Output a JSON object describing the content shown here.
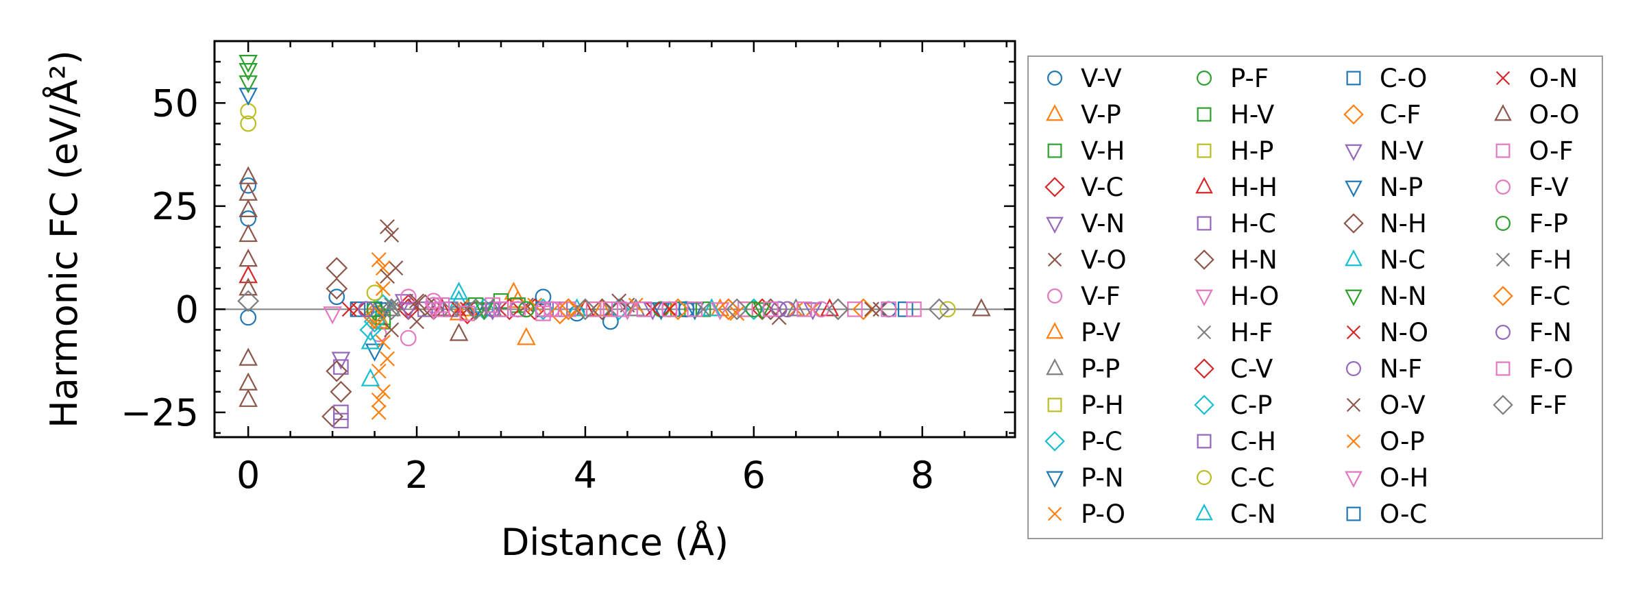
{
  "chart_data": {
    "type": "scatter",
    "title": "",
    "xlabel": "Distance (Å)",
    "ylabel": "Harmonic FC (eV/Å²)",
    "xlim": [
      -0.4,
      9.1
    ],
    "ylim": [
      -31,
      65
    ],
    "xticks": [
      0,
      2,
      4,
      6,
      8
    ],
    "yticks": [
      -25,
      0,
      25,
      50
    ],
    "xtick_labels": [
      "0",
      "2",
      "4",
      "6",
      "8"
    ],
    "ytick_labels": [
      "−25",
      "0",
      "25",
      "50"
    ],
    "reference_line_y": 0,
    "legend_position": "outside-right",
    "legend_columns": 4,
    "series": [
      {
        "name": "V-V",
        "marker": "circle",
        "color": "#1f77b4",
        "points": [
          [
            0,
            30
          ],
          [
            0,
            22
          ],
          [
            0,
            -2
          ],
          [
            1.05,
            3
          ],
          [
            3.5,
            3
          ],
          [
            3.9,
            -1
          ],
          [
            4.3,
            -3
          ],
          [
            5.2,
            0
          ],
          [
            6.3,
            0
          ],
          [
            7.6,
            0
          ]
        ]
      },
      {
        "name": "V-P",
        "marker": "triangle-up",
        "color": "#ff7f0e",
        "points": [
          [
            1.55,
            -2
          ],
          [
            2.5,
            -1
          ],
          [
            3.15,
            4
          ],
          [
            3.3,
            -7
          ],
          [
            4.2,
            0
          ],
          [
            5.5,
            0
          ]
        ]
      },
      {
        "name": "V-H",
        "marker": "square",
        "color": "#2ca02c",
        "points": [
          [
            1.6,
            -3
          ],
          [
            2.7,
            1
          ],
          [
            3.0,
            2
          ],
          [
            5.1,
            0
          ]
        ]
      },
      {
        "name": "V-C",
        "marker": "diamond",
        "color": "#d62728",
        "points": [
          [
            1.9,
            1
          ],
          [
            2.6,
            -1
          ],
          [
            3.4,
            0
          ],
          [
            6.1,
            0
          ]
        ]
      },
      {
        "name": "V-N",
        "marker": "triangle-down",
        "color": "#9467bd",
        "points": [
          [
            1.1,
            -12
          ],
          [
            1.85,
            2
          ],
          [
            2.9,
            0
          ],
          [
            4.8,
            0
          ]
        ]
      },
      {
        "name": "V-O",
        "marker": "x",
        "color": "#8c564b",
        "points": [
          [
            1.65,
            20
          ],
          [
            1.7,
            18
          ],
          [
            1.75,
            10
          ],
          [
            2.0,
            -3
          ],
          [
            3.3,
            1
          ],
          [
            4.5,
            1
          ],
          [
            6.3,
            -2
          ],
          [
            7.5,
            0
          ]
        ]
      },
      {
        "name": "V-F",
        "marker": "circle",
        "color": "#e377c2",
        "points": [
          [
            1.55,
            -6
          ],
          [
            1.9,
            3
          ],
          [
            2.2,
            1
          ],
          [
            3.6,
            0
          ],
          [
            5.0,
            0
          ]
        ]
      },
      {
        "name": "P-V",
        "marker": "triangle-up",
        "color": "#ff7f0e",
        "points": [
          [
            1.55,
            -3
          ],
          [
            2.6,
            0
          ],
          [
            3.2,
            2
          ],
          [
            5.6,
            0
          ]
        ]
      },
      {
        "name": "P-P",
        "marker": "triangle-up",
        "color": "#7f7f7f",
        "points": [
          [
            1.7,
            0
          ],
          [
            2.9,
            0
          ],
          [
            4.6,
            0
          ],
          [
            6.5,
            0
          ]
        ]
      },
      {
        "name": "P-H",
        "marker": "square",
        "color": "#bcbd22",
        "points": [
          [
            1.5,
            0
          ],
          [
            2.4,
            0
          ],
          [
            4.1,
            0
          ]
        ]
      },
      {
        "name": "P-C",
        "marker": "diamond",
        "color": "#17becf",
        "points": [
          [
            1.45,
            -5
          ],
          [
            1.6,
            1
          ],
          [
            2.8,
            0
          ],
          [
            4.4,
            0
          ]
        ]
      },
      {
        "name": "P-N",
        "marker": "triangle-down",
        "color": "#1f77b4",
        "points": [
          [
            1.5,
            -10
          ],
          [
            2.7,
            0
          ],
          [
            5.3,
            0
          ]
        ]
      },
      {
        "name": "P-O",
        "marker": "x",
        "color": "#ff7f0e",
        "points": [
          [
            1.55,
            12
          ],
          [
            1.6,
            10
          ],
          [
            1.6,
            -8
          ],
          [
            1.55,
            -15
          ],
          [
            1.6,
            -20
          ],
          [
            1.55,
            -25
          ],
          [
            1.65,
            -12
          ],
          [
            3.4,
            1
          ],
          [
            4.6,
            1
          ],
          [
            5.8,
            -1
          ],
          [
            6.7,
            0
          ]
        ]
      },
      {
        "name": "P-F",
        "marker": "circle",
        "color": "#2ca02c",
        "points": [
          [
            1.55,
            -1
          ],
          [
            2.7,
            0
          ],
          [
            4.9,
            0
          ]
        ]
      },
      {
        "name": "H-V",
        "marker": "square",
        "color": "#2ca02c",
        "points": [
          [
            1.6,
            -2
          ],
          [
            3.2,
            1
          ],
          [
            5.4,
            0
          ]
        ]
      },
      {
        "name": "H-P",
        "marker": "square",
        "color": "#bcbd22",
        "points": [
          [
            1.5,
            0
          ],
          [
            3.0,
            0
          ],
          [
            5.9,
            0
          ]
        ]
      },
      {
        "name": "H-H",
        "marker": "triangle-up",
        "color": "#d62728",
        "points": [
          [
            0,
            8
          ],
          [
            2.3,
            0
          ],
          [
            4.0,
            0
          ],
          [
            6.9,
            0
          ]
        ]
      },
      {
        "name": "H-C",
        "marker": "square",
        "color": "#9467bd",
        "points": [
          [
            1.1,
            -25
          ],
          [
            2.1,
            0
          ],
          [
            3.7,
            0
          ]
        ]
      },
      {
        "name": "H-N",
        "marker": "diamond",
        "color": "#8c564b",
        "points": [
          [
            1.05,
            10
          ],
          [
            1.1,
            -20
          ],
          [
            1.0,
            -26
          ],
          [
            2.2,
            0
          ],
          [
            3.8,
            0
          ],
          [
            6.2,
            0
          ]
        ]
      },
      {
        "name": "H-O",
        "marker": "triangle-down",
        "color": "#e377c2",
        "points": [
          [
            2.2,
            0
          ],
          [
            2.8,
            0
          ],
          [
            4.5,
            0
          ]
        ]
      },
      {
        "name": "H-F",
        "marker": "x",
        "color": "#7f7f7f",
        "points": [
          [
            1.7,
            0
          ],
          [
            2.5,
            0
          ],
          [
            4.3,
            0
          ]
        ]
      },
      {
        "name": "C-V",
        "marker": "diamond",
        "color": "#d62728",
        "points": [
          [
            1.9,
            0
          ],
          [
            3.1,
            0
          ],
          [
            5.7,
            0
          ]
        ]
      },
      {
        "name": "C-P",
        "marker": "diamond",
        "color": "#17becf",
        "points": [
          [
            1.5,
            -3
          ],
          [
            3.5,
            0
          ],
          [
            6.0,
            0
          ]
        ]
      },
      {
        "name": "C-H",
        "marker": "square",
        "color": "#9467bd",
        "points": [
          [
            1.1,
            -14
          ],
          [
            1.1,
            -27
          ],
          [
            2.4,
            0
          ],
          [
            4.7,
            0
          ]
        ]
      },
      {
        "name": "C-C",
        "marker": "circle",
        "color": "#bcbd22",
        "points": [
          [
            0,
            45
          ],
          [
            0,
            48
          ],
          [
            1.5,
            4
          ],
          [
            3.3,
            0
          ],
          [
            8.3,
            0
          ]
        ]
      },
      {
        "name": "C-N",
        "marker": "triangle-up",
        "color": "#17becf",
        "points": [
          [
            1.45,
            -17
          ],
          [
            2.5,
            4
          ],
          [
            3.9,
            0
          ]
        ]
      },
      {
        "name": "C-O",
        "marker": "square",
        "color": "#1f77b4",
        "points": [
          [
            1.5,
            0
          ],
          [
            3.5,
            0
          ],
          [
            5.2,
            0
          ]
        ]
      },
      {
        "name": "C-F",
        "marker": "diamond",
        "color": "#ff7f0e",
        "points": [
          [
            1.5,
            -1
          ],
          [
            3.7,
            -1
          ],
          [
            5.1,
            0
          ],
          [
            7.3,
            0
          ]
        ]
      },
      {
        "name": "N-V",
        "marker": "triangle-down",
        "color": "#9467bd",
        "points": [
          [
            1.9,
            0
          ],
          [
            2.9,
            0
          ],
          [
            6.7,
            0
          ]
        ]
      },
      {
        "name": "N-P",
        "marker": "triangle-down",
        "color": "#1f77b4",
        "points": [
          [
            0,
            52
          ],
          [
            1.6,
            0
          ],
          [
            4.9,
            0
          ]
        ]
      },
      {
        "name": "N-H",
        "marker": "diamond",
        "color": "#8c564b",
        "points": [
          [
            1.05,
            -15
          ],
          [
            1.05,
            5
          ],
          [
            2.1,
            1
          ],
          [
            4.2,
            0
          ],
          [
            7.0,
            0
          ]
        ]
      },
      {
        "name": "N-C",
        "marker": "triangle-up",
        "color": "#17becf",
        "points": [
          [
            1.45,
            -8
          ],
          [
            2.5,
            2
          ],
          [
            5.5,
            0
          ]
        ]
      },
      {
        "name": "N-N",
        "marker": "triangle-down",
        "color": "#2ca02c",
        "points": [
          [
            0,
            60
          ],
          [
            0,
            58
          ],
          [
            0,
            55
          ],
          [
            2.8,
            0
          ],
          [
            6.1,
            0
          ]
        ]
      },
      {
        "name": "N-O",
        "marker": "x",
        "color": "#d62728",
        "points": [
          [
            1.3,
            0
          ],
          [
            2.6,
            0
          ],
          [
            5.0,
            0
          ]
        ]
      },
      {
        "name": "N-F",
        "marker": "circle",
        "color": "#9467bd",
        "points": [
          [
            1.4,
            0
          ],
          [
            3.2,
            0
          ],
          [
            6.3,
            0
          ]
        ]
      },
      {
        "name": "O-V",
        "marker": "x",
        "color": "#8c564b",
        "points": [
          [
            1.65,
            8
          ],
          [
            1.7,
            -5
          ],
          [
            2.0,
            2
          ],
          [
            4.4,
            2
          ],
          [
            7.4,
            0
          ]
        ]
      },
      {
        "name": "O-P",
        "marker": "x",
        "color": "#ff7f0e",
        "points": [
          [
            1.55,
            -22
          ],
          [
            1.6,
            5
          ],
          [
            3.9,
            0
          ],
          [
            6.5,
            0
          ]
        ]
      },
      {
        "name": "O-H",
        "marker": "triangle-down",
        "color": "#e377c2",
        "points": [
          [
            1.0,
            -1
          ],
          [
            2.2,
            0
          ],
          [
            5.6,
            0
          ]
        ]
      },
      {
        "name": "O-C",
        "marker": "square",
        "color": "#1f77b4",
        "points": [
          [
            1.3,
            0
          ],
          [
            3.0,
            0
          ],
          [
            7.8,
            0
          ]
        ]
      },
      {
        "name": "O-N",
        "marker": "x",
        "color": "#d62728",
        "points": [
          [
            1.2,
            0
          ],
          [
            2.5,
            0
          ],
          [
            4.8,
            0
          ]
        ]
      },
      {
        "name": "O-O",
        "marker": "triangle-up",
        "color": "#8c564b",
        "points": [
          [
            0,
            32
          ],
          [
            0,
            28
          ],
          [
            0,
            24
          ],
          [
            0,
            18
          ],
          [
            0,
            12
          ],
          [
            0,
            5
          ],
          [
            0,
            -12
          ],
          [
            0,
            -18
          ],
          [
            0,
            -22
          ],
          [
            2.5,
            -6
          ],
          [
            8.7,
            0
          ]
        ]
      },
      {
        "name": "O-F",
        "marker": "square",
        "color": "#e377c2",
        "points": [
          [
            2.3,
            0
          ],
          [
            2.6,
            -1
          ],
          [
            2.9,
            1
          ],
          [
            3.2,
            0
          ],
          [
            3.5,
            -1
          ],
          [
            3.8,
            0
          ],
          [
            4.1,
            0
          ],
          [
            4.4,
            0
          ],
          [
            4.7,
            0
          ],
          [
            5.3,
            0
          ],
          [
            5.9,
            0
          ],
          [
            6.6,
            0
          ],
          [
            7.2,
            0
          ],
          [
            7.9,
            0
          ]
        ]
      },
      {
        "name": "F-V",
        "marker": "circle",
        "color": "#e377c2",
        "points": [
          [
            1.9,
            -7
          ],
          [
            2.2,
            2
          ],
          [
            3.5,
            0
          ],
          [
            6.8,
            0
          ]
        ]
      },
      {
        "name": "F-P",
        "marker": "circle",
        "color": "#2ca02c",
        "points": [
          [
            1.5,
            0
          ],
          [
            3.3,
            0
          ],
          [
            6.0,
            0
          ]
        ]
      },
      {
        "name": "F-H",
        "marker": "x",
        "color": "#7f7f7f",
        "points": [
          [
            1.7,
            1
          ],
          [
            2.4,
            0
          ],
          [
            5.4,
            0
          ]
        ]
      },
      {
        "name": "F-C",
        "marker": "diamond",
        "color": "#ff7f0e",
        "points": [
          [
            1.5,
            -2
          ],
          [
            3.8,
            0
          ],
          [
            5.7,
            0
          ]
        ]
      },
      {
        "name": "F-N",
        "marker": "circle",
        "color": "#9467bd",
        "points": [
          [
            1.4,
            0
          ],
          [
            2.9,
            0
          ],
          [
            6.4,
            0
          ]
        ]
      },
      {
        "name": "F-O",
        "marker": "square",
        "color": "#e377c2",
        "points": [
          [
            2.3,
            1
          ],
          [
            3.0,
            0
          ],
          [
            3.6,
            0
          ],
          [
            4.3,
            0
          ],
          [
            5.0,
            0
          ],
          [
            6.2,
            0
          ],
          [
            7.6,
            0
          ]
        ]
      },
      {
        "name": "F-F",
        "marker": "diamond",
        "color": "#7f7f7f",
        "points": [
          [
            0,
            2
          ],
          [
            1.7,
            0
          ],
          [
            2.7,
            0
          ],
          [
            4.0,
            0
          ],
          [
            5.8,
            0
          ],
          [
            7.0,
            0
          ],
          [
            8.2,
            0
          ]
        ]
      }
    ]
  }
}
